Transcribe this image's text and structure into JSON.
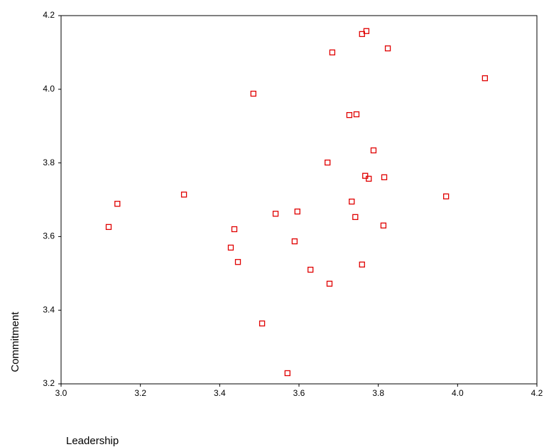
{
  "chart_data": {
    "type": "scatter",
    "xlabel": "Leadership",
    "ylabel": "Commitment",
    "color": "#e00000",
    "xlim": [
      3.0,
      4.2
    ],
    "ylim": [
      3.2,
      4.2
    ],
    "xticks": [
      {
        "value": 3.0,
        "label": "3.0"
      },
      3.2,
      3.4,
      3.6,
      3.8,
      {
        "value": 4.0,
        "label": "4.0"
      },
      4.2
    ],
    "yticks": [
      3.2,
      3.4,
      3.6,
      3.8,
      {
        "value": 4.0,
        "label": "4.0"
      },
      4.2
    ],
    "x": [
      3.12,
      3.142,
      3.31,
      3.437,
      3.428,
      3.446,
      3.485,
      3.507,
      3.541,
      3.596,
      3.589,
      3.571,
      3.629,
      3.672,
      3.677,
      3.684,
      3.727,
      3.745,
      3.733,
      3.742,
      3.759,
      3.77,
      3.767,
      3.776,
      3.759,
      3.788,
      3.815,
      3.813,
      3.824,
      3.971,
      4.069
    ],
    "y": [
      3.626,
      3.689,
      3.714,
      3.62,
      3.57,
      3.531,
      3.988,
      3.364,
      3.662,
      3.668,
      3.587,
      3.229,
      3.51,
      3.801,
      3.472,
      4.1,
      3.93,
      3.932,
      3.695,
      3.653,
      4.15,
      4.158,
      3.765,
      3.757,
      3.524,
      3.834,
      3.761,
      3.63,
      4.111,
      3.709,
      4.03
    ]
  }
}
